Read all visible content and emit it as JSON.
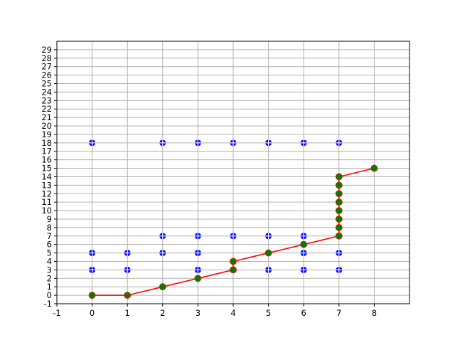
{
  "chart_data": {
    "type": "scatter",
    "title": "",
    "xlabel": "",
    "ylabel": "",
    "xlim": [
      -1,
      9
    ],
    "ylim": [
      -1,
      30
    ],
    "grid": true,
    "x_ticks": [
      "-1",
      "0",
      "1",
      "2",
      "3",
      "4",
      "5",
      "6",
      "7",
      "8"
    ],
    "y_ticks": [
      "-1",
      "0",
      "1",
      "2",
      "3",
      "4",
      "5",
      "6",
      "7",
      "8",
      "9",
      "10",
      "11",
      "12",
      "13",
      "14",
      "15",
      "16",
      "17",
      "18",
      "19",
      "20",
      "21",
      "22",
      "23",
      "24",
      "25",
      "26",
      "27",
      "28",
      "29"
    ],
    "series": [
      {
        "kind": "markers",
        "color": "#0000ff",
        "marker": "circle-with-white-cross",
        "points": [
          [
            0,
            18
          ],
          [
            2,
            18
          ],
          [
            3,
            18
          ],
          [
            4,
            18
          ],
          [
            5,
            18
          ],
          [
            6,
            18
          ],
          [
            7,
            18
          ],
          [
            2,
            7
          ],
          [
            3,
            7
          ],
          [
            4,
            7
          ],
          [
            5,
            7
          ],
          [
            6,
            7
          ],
          [
            0,
            5
          ],
          [
            1,
            5
          ],
          [
            2,
            5
          ],
          [
            3,
            5
          ],
          [
            6,
            5
          ],
          [
            7,
            5
          ],
          [
            0,
            3
          ],
          [
            1,
            3
          ],
          [
            3,
            3
          ],
          [
            5,
            3
          ],
          [
            6,
            3
          ],
          [
            7,
            3
          ]
        ]
      },
      {
        "kind": "line-with-markers",
        "line_color": "#ff0000",
        "marker_color": "#008000",
        "points": [
          [
            0,
            0
          ],
          [
            1,
            0
          ],
          [
            2,
            1
          ],
          [
            3,
            2
          ],
          [
            4,
            3
          ],
          [
            4,
            4
          ],
          [
            5,
            5
          ],
          [
            6,
            6
          ],
          [
            7,
            7
          ],
          [
            7,
            8
          ],
          [
            7,
            9
          ],
          [
            7,
            10
          ],
          [
            7,
            11
          ],
          [
            7,
            12
          ],
          [
            7,
            13
          ],
          [
            7,
            14
          ],
          [
            8,
            15
          ]
        ]
      }
    ]
  }
}
